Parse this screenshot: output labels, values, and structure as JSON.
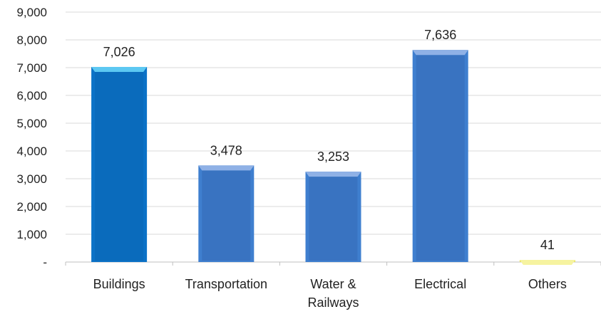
{
  "chart_data": {
    "type": "bar",
    "categories": [
      [
        "Buildings"
      ],
      [
        "Transportation"
      ],
      [
        "Water &",
        "Railways"
      ],
      [
        "Electrical"
      ],
      [
        "Others"
      ]
    ],
    "values": [
      7026,
      3478,
      3253,
      7636,
      41
    ],
    "data_labels": [
      "7,026",
      "3,478",
      "3,253",
      "7,636",
      "41"
    ],
    "ylim": [
      0,
      9000
    ],
    "y_ticks": [
      {
        "value": 0,
        "label": "-"
      },
      {
        "value": 1000,
        "label": "1,000"
      },
      {
        "value": 2000,
        "label": "2,000"
      },
      {
        "value": 3000,
        "label": "3,000"
      },
      {
        "value": 4000,
        "label": "4,000"
      },
      {
        "value": 5000,
        "label": "5,000"
      },
      {
        "value": 6000,
        "label": "6,000"
      },
      {
        "value": 7000,
        "label": "7,000"
      },
      {
        "value": 8000,
        "label": "8,000"
      },
      {
        "value": 9000,
        "label": "9,000"
      }
    ],
    "grid": true,
    "legend": "none",
    "colors": {
      "bar": [
        "#0b72c7",
        "#3f7fcf",
        "#3f7fcf",
        "#3f7fcf",
        "#e8e25a"
      ],
      "bar_dark": [
        "#0a5fa8",
        "#2e5fa6",
        "#2e5fa6",
        "#2e5fa6",
        "#c9c23a"
      ],
      "bar_top": [
        "#5cc8f2",
        "#8fb1e6",
        "#8fb1e6",
        "#8fb1e6",
        "#f6f3a0"
      ],
      "grid": "#d9d9d9",
      "axis": "#bfbfbf"
    }
  }
}
